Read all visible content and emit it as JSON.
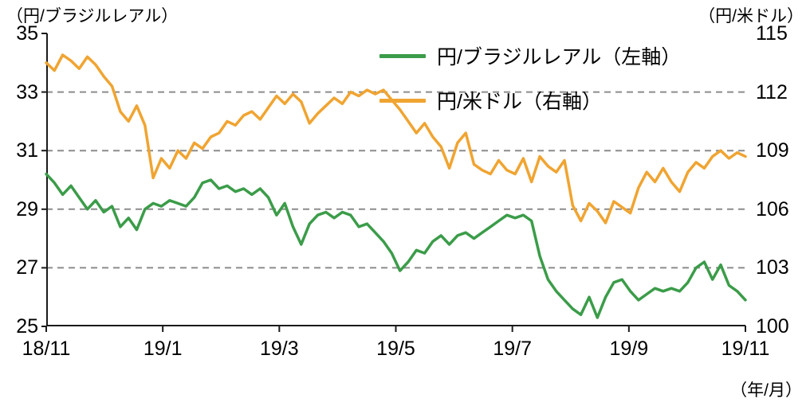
{
  "chart_data": {
    "type": "line",
    "title": "",
    "x_axis_label": "（年/月）",
    "x_tick_labels": [
      "18/11",
      "19/1",
      "19/3",
      "19/5",
      "19/7",
      "19/9",
      "19/11"
    ],
    "left_axis": {
      "label": "（円/ブラジルレアル）",
      "min": 25,
      "max": 35,
      "ticks": [
        25,
        27,
        29,
        31,
        33,
        35
      ]
    },
    "right_axis": {
      "label": "（円/米ドル）",
      "min": 100,
      "max": 115,
      "ticks": [
        100,
        103,
        106,
        109,
        112,
        115
      ]
    },
    "grid": "horizontal dashed",
    "gridlines_left_values": [
      27,
      29,
      31,
      33
    ],
    "legend_position": "top-right-inside",
    "axis_color": "#1a1a1a",
    "gridline_color": "#8c8c8c",
    "series": [
      {
        "name": "円/ブラジルレアル（左軸）",
        "axis": "left",
        "color": "#3b9c49",
        "values": [
          30.2,
          29.9,
          29.5,
          29.8,
          29.4,
          29.0,
          29.3,
          28.9,
          29.1,
          28.4,
          28.7,
          28.3,
          29.0,
          29.2,
          29.1,
          29.3,
          29.2,
          29.1,
          29.4,
          29.9,
          30.0,
          29.7,
          29.8,
          29.6,
          29.7,
          29.5,
          29.7,
          29.4,
          28.8,
          29.2,
          28.4,
          27.8,
          28.5,
          28.8,
          28.9,
          28.7,
          28.9,
          28.8,
          28.4,
          28.5,
          28.2,
          27.9,
          27.5,
          26.9,
          27.2,
          27.6,
          27.5,
          27.9,
          28.1,
          27.8,
          28.1,
          28.2,
          28.0,
          28.2,
          28.4,
          28.6,
          28.8,
          28.7,
          28.8,
          28.6,
          27.4,
          26.6,
          26.2,
          25.9,
          25.6,
          25.4,
          26.0,
          25.3,
          26.0,
          26.5,
          26.6,
          26.2,
          25.9,
          26.1,
          26.3,
          26.2,
          26.3,
          26.2,
          26.5,
          27.0,
          27.2,
          26.6,
          27.1,
          26.4,
          26.2,
          25.9
        ]
      },
      {
        "name": "円/米ドル（右軸）",
        "axis": "right",
        "color": "#f0a431",
        "values": [
          113.5,
          113.1,
          113.9,
          113.6,
          113.2,
          113.8,
          113.4,
          112.8,
          112.3,
          111.0,
          110.5,
          111.3,
          110.3,
          107.6,
          108.6,
          108.1,
          109.0,
          108.6,
          109.4,
          109.1,
          109.7,
          109.9,
          110.5,
          110.3,
          110.8,
          111.0,
          110.6,
          111.2,
          111.8,
          111.4,
          111.9,
          111.5,
          110.4,
          110.9,
          111.3,
          111.7,
          111.4,
          112.0,
          111.8,
          112.1,
          111.9,
          112.1,
          111.6,
          111.1,
          110.5,
          109.9,
          110.4,
          109.7,
          109.2,
          108.1,
          109.4,
          109.9,
          108.3,
          108.0,
          107.8,
          108.5,
          108.0,
          107.8,
          108.6,
          107.4,
          108.7,
          108.2,
          107.9,
          108.5,
          106.2,
          105.4,
          106.3,
          105.9,
          105.3,
          106.4,
          106.1,
          105.8,
          107.1,
          107.9,
          107.4,
          108.1,
          107.4,
          106.9,
          107.9,
          108.4,
          108.1,
          108.7,
          109.0,
          108.6,
          108.9,
          108.7
        ]
      }
    ]
  }
}
